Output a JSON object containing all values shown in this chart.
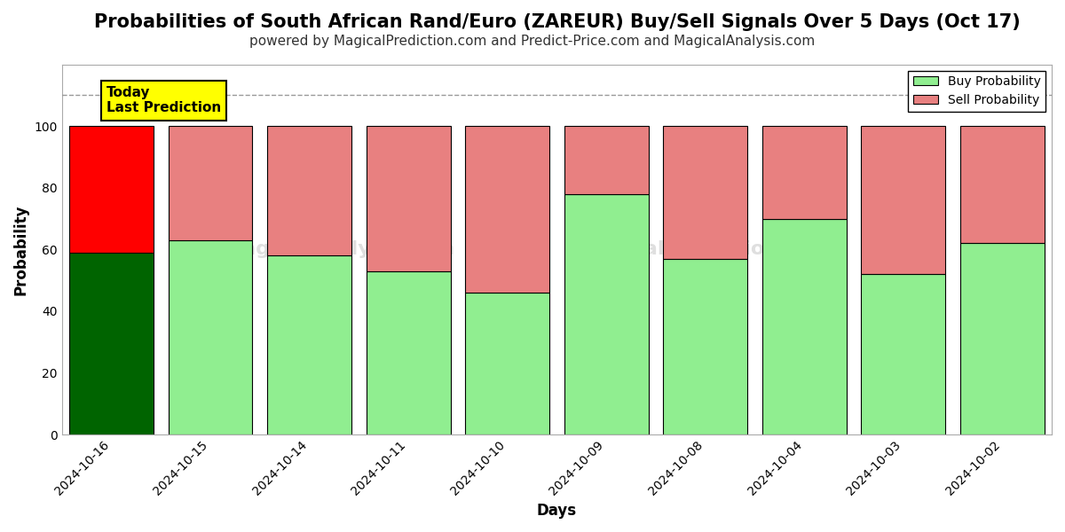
{
  "title": "Probabilities of South African Rand/Euro (ZAREUR) Buy/Sell Signals Over 5 Days (Oct 17)",
  "subtitle": "powered by MagicalPrediction.com and Predict-Price.com and MagicalAnalysis.com",
  "xlabel": "Days",
  "ylabel": "Probability",
  "categories": [
    "2024-10-16",
    "2024-10-15",
    "2024-10-14",
    "2024-10-11",
    "2024-10-10",
    "2024-10-09",
    "2024-10-08",
    "2024-10-04",
    "2024-10-03",
    "2024-10-02"
  ],
  "buy_values": [
    59,
    63,
    58,
    53,
    46,
    78,
    57,
    70,
    52,
    62
  ],
  "sell_values": [
    41,
    37,
    42,
    47,
    54,
    22,
    43,
    30,
    48,
    38
  ],
  "today_buy_color": "#006400",
  "today_sell_color": "#ff0000",
  "buy_color": "#90EE90",
  "sell_color": "#E88080",
  "ylim": [
    0,
    120
  ],
  "yticks": [
    0,
    20,
    40,
    60,
    80,
    100
  ],
  "dashed_line_y": 110,
  "annotation_text": "Today\nLast Prediction",
  "annotation_bg": "#ffff00",
  "legend_buy": "Buy Probability",
  "legend_sell": "Sell Probability",
  "background_color": "#ffffff",
  "plot_bg_color": "#ffffff",
  "grid_color": "#ffffff",
  "title_fontsize": 15,
  "subtitle_fontsize": 11,
  "axis_label_fontsize": 12,
  "tick_fontsize": 10,
  "bar_width": 0.85
}
